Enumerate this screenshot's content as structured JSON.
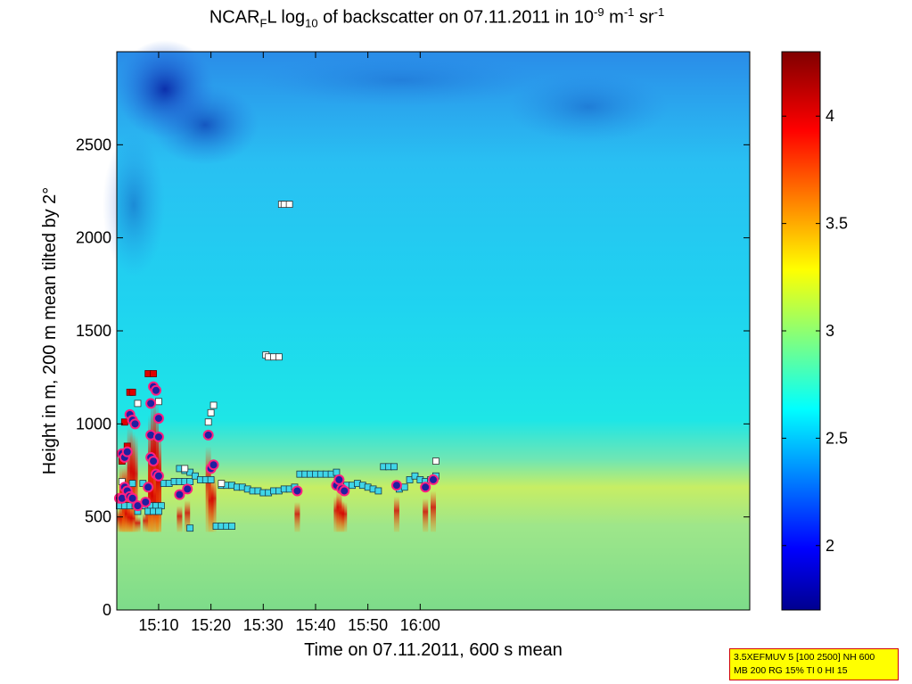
{
  "chart_data": {
    "type": "heatmap",
    "title_parts": {
      "a": "NCAR",
      "b": "F",
      "c": "L log",
      "d": "10",
      "e": " of backscatter on 07.11.2011 in 10",
      "f": "-9",
      "g": " m",
      "h": "-1",
      "i": " sr",
      "j": "-1"
    },
    "xlabel": "Time on 07.11.2011, 600 s mean",
    "ylabel": "Height in m, 200 m mean tilted by 2°",
    "x_range_min": [
      902,
      1023
    ],
    "y_range_m": [
      0,
      3000
    ],
    "x_ticks": [
      {
        "min": 910,
        "label": "15:10"
      },
      {
        "min": 920,
        "label": "15:20"
      },
      {
        "min": 930,
        "label": "15:30"
      },
      {
        "min": 940,
        "label": "15:40"
      },
      {
        "min": 950,
        "label": "15:50"
      },
      {
        "min": 960,
        "label": "16:00"
      }
    ],
    "y_ticks": [
      0,
      500,
      1000,
      1500,
      2000,
      2500
    ],
    "colorbar": {
      "range": [
        1.7,
        4.3
      ],
      "ticks": [
        2,
        2.5,
        3,
        3.5,
        4
      ],
      "tick_labels": [
        "2",
        "2.5",
        "3",
        "3.5",
        "4"
      ]
    },
    "boundary_layer_squares": [
      [
        902.5,
        560
      ],
      [
        903.5,
        560
      ],
      [
        904.5,
        560
      ],
      [
        905.5,
        560
      ],
      [
        906.5,
        560
      ],
      [
        907.5,
        560
      ],
      [
        908.5,
        560
      ],
      [
        909.5,
        560
      ],
      [
        910.5,
        560
      ],
      [
        906,
        530
      ],
      [
        908,
        530
      ],
      [
        909,
        530
      ],
      [
        910,
        530
      ],
      [
        905,
        680
      ],
      [
        907,
        680
      ],
      [
        911,
        680
      ],
      [
        912,
        680
      ],
      [
        913,
        690
      ],
      [
        914,
        690
      ],
      [
        915,
        690
      ],
      [
        916,
        690
      ],
      [
        914,
        760
      ],
      [
        915,
        750
      ],
      [
        916,
        740
      ],
      [
        917,
        720
      ],
      [
        918,
        700
      ],
      [
        919,
        700
      ],
      [
        920,
        700
      ],
      [
        922,
        670
      ],
      [
        923,
        670
      ],
      [
        924,
        670
      ],
      [
        925,
        660
      ],
      [
        926,
        660
      ],
      [
        927,
        650
      ],
      [
        928,
        640
      ],
      [
        929,
        640
      ],
      [
        930,
        630
      ],
      [
        931,
        630
      ],
      [
        932,
        640
      ],
      [
        933,
        640
      ],
      [
        934,
        650
      ],
      [
        935,
        650
      ],
      [
        936,
        660
      ],
      [
        937,
        730
      ],
      [
        938,
        730
      ],
      [
        939,
        730
      ],
      [
        940,
        730
      ],
      [
        941,
        730
      ],
      [
        942,
        730
      ],
      [
        943,
        730
      ],
      [
        944,
        740
      ],
      [
        945,
        660
      ],
      [
        946,
        670
      ],
      [
        947,
        670
      ],
      [
        948,
        680
      ],
      [
        949,
        670
      ],
      [
        950,
        660
      ],
      [
        951,
        650
      ],
      [
        952,
        640
      ],
      [
        953,
        770
      ],
      [
        954,
        770
      ],
      [
        955,
        770
      ],
      [
        956,
        650
      ],
      [
        957,
        660
      ],
      [
        958,
        700
      ],
      [
        959,
        720
      ],
      [
        960,
        700
      ],
      [
        961,
        690
      ],
      [
        962,
        700
      ],
      [
        963,
        720
      ],
      [
        921,
        450
      ],
      [
        922,
        450
      ],
      [
        923,
        450
      ],
      [
        924,
        450
      ],
      [
        916,
        440
      ]
    ],
    "aerosol_top_squares": [
      [
        906,
        1110
      ],
      [
        910,
        1120
      ],
      [
        919.5,
        1010
      ],
      [
        920,
        1060
      ],
      [
        920.5,
        1100
      ],
      [
        933.5,
        2180
      ],
      [
        934,
        2180
      ],
      [
        935,
        2180
      ],
      [
        930.5,
        1370
      ],
      [
        931,
        1360
      ],
      [
        932,
        1360
      ],
      [
        933,
        1360
      ],
      [
        963,
        800
      ],
      [
        922,
        680
      ],
      [
        915,
        760
      ],
      [
        903,
        690
      ]
    ],
    "red_squares": [
      [
        903.5,
        1010
      ],
      [
        904.5,
        1170
      ],
      [
        905,
        1170
      ],
      [
        908,
        1270
      ],
      [
        909,
        1270
      ],
      [
        904,
        880
      ],
      [
        903,
        800
      ]
    ],
    "cloud_base_points": [
      [
        902.5,
        600
      ],
      [
        903,
        600
      ],
      [
        903.5,
        660
      ],
      [
        903,
        840
      ],
      [
        903.5,
        820
      ],
      [
        904,
        850
      ],
      [
        904,
        640
      ],
      [
        904.5,
        1050
      ],
      [
        905,
        1020
      ],
      [
        905.5,
        1000
      ],
      [
        904.5,
        610
      ],
      [
        905,
        600
      ],
      [
        906,
        560
      ],
      [
        907.5,
        580
      ],
      [
        908,
        660
      ],
      [
        908.5,
        940
      ],
      [
        908.5,
        1110
      ],
      [
        909,
        1200
      ],
      [
        909.5,
        1180
      ],
      [
        908.5,
        820
      ],
      [
        909,
        800
      ],
      [
        909.5,
        730
      ],
      [
        910,
        720
      ],
      [
        910,
        1030
      ],
      [
        910,
        930
      ],
      [
        914,
        620
      ],
      [
        915.5,
        650
      ],
      [
        919.5,
        940
      ],
      [
        920,
        760
      ],
      [
        920.5,
        780
      ],
      [
        936.5,
        640
      ],
      [
        944,
        670
      ],
      [
        944.5,
        700
      ],
      [
        945,
        650
      ],
      [
        945.5,
        640
      ],
      [
        955.5,
        670
      ],
      [
        961,
        660
      ],
      [
        962.5,
        700
      ]
    ]
  },
  "infobox": {
    "line1": "3.5XEFMUV 5 [100 2500] NH 600",
    "line2": "MB 200 RG 15% TI 0 HI 15"
  }
}
